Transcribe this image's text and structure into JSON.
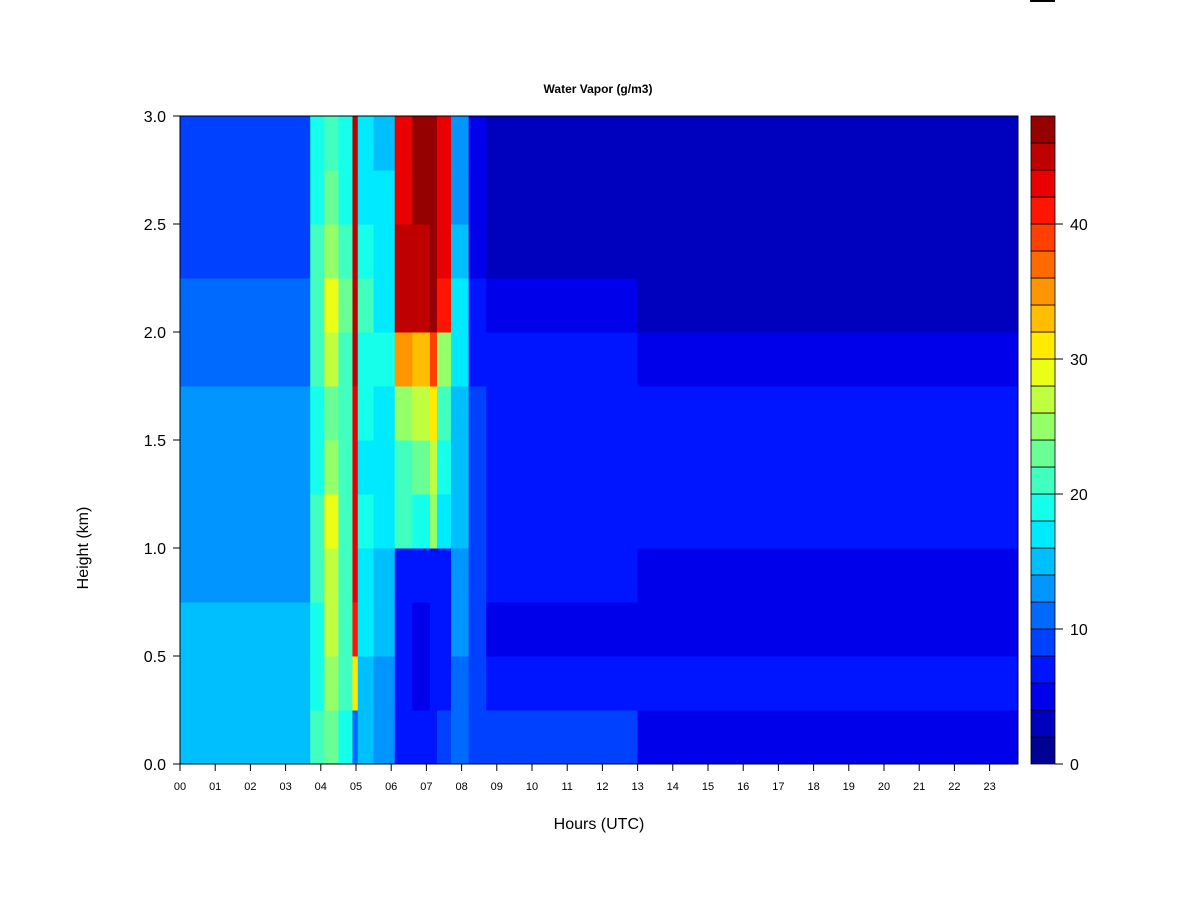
{
  "chart_data": {
    "type": "heatmap",
    "title": "Water Vapor (g/m3)",
    "xlabel": "Hours (UTC)",
    "ylabel": "Height (km)",
    "xlim": [
      0,
      23.8
    ],
    "ylim": [
      0,
      3.0
    ],
    "x_tick_labels": [
      "00",
      "01",
      "02",
      "03",
      "04",
      "05",
      "06",
      "07",
      "08",
      "09",
      "10",
      "11",
      "12",
      "13",
      "14",
      "15",
      "16",
      "17",
      "18",
      "19",
      "20",
      "21",
      "22",
      "23"
    ],
    "y_ticks": [
      0.0,
      0.5,
      1.0,
      1.5,
      2.0,
      2.5,
      3.0
    ],
    "y_tick_labels": [
      "0.0",
      "0.5",
      "1.0",
      "1.5",
      "2.0",
      "2.5",
      "3.0"
    ],
    "colorbar": {
      "levels_min": 0,
      "levels_max": 48,
      "level_step": 2,
      "ticks": [
        0,
        10,
        20,
        30,
        40
      ],
      "tick_labels": [
        "0",
        "10",
        "20",
        "30",
        "40"
      ],
      "colormap": "jet"
    },
    "height_bands_km": [
      0,
      0.25,
      0.5,
      0.75,
      1.0,
      1.25,
      1.5,
      1.75,
      2.0,
      2.25,
      2.5,
      2.75,
      3.0
    ],
    "columns": [
      {
        "from": 0,
        "to": 3.7,
        "values": [
          15,
          15,
          14,
          13,
          12,
          12,
          12,
          11,
          10,
          9,
          9,
          9
        ]
      },
      {
        "from": 3.7,
        "to": 4.1,
        "values": [
          20,
          19,
          19,
          20,
          20,
          19,
          19,
          20,
          21,
          20,
          19,
          18
        ]
      },
      {
        "from": 4.1,
        "to": 4.5,
        "values": [
          22,
          24,
          27,
          26,
          28,
          24,
          23,
          26,
          29,
          24,
          22,
          20
        ]
      },
      {
        "from": 4.5,
        "to": 4.9,
        "values": [
          19,
          20,
          20,
          20,
          21,
          20,
          20,
          21,
          23,
          20,
          19,
          18
        ]
      },
      {
        "from": 4.9,
        "to": 5.05,
        "values": [
          10,
          30,
          40,
          42,
          43,
          43,
          43,
          44,
          45,
          45,
          45,
          45
        ]
      },
      {
        "from": 5.05,
        "to": 5.5,
        "values": [
          14,
          15,
          16,
          16,
          18,
          17,
          18,
          19,
          20,
          18,
          17,
          16
        ]
      },
      {
        "from": 5.5,
        "to": 6.1,
        "values": [
          12,
          13,
          14,
          14,
          16,
          17,
          17,
          18,
          17,
          16,
          16,
          15
        ]
      },
      {
        "from": 6.1,
        "to": 6.6,
        "values": [
          7,
          6,
          6,
          6,
          20,
          21,
          24,
          34,
          44,
          44,
          43,
          42
        ]
      },
      {
        "from": 6.6,
        "to": 7.1,
        "values": [
          7,
          5,
          5,
          6,
          18,
          22,
          26,
          32,
          44,
          45,
          46,
          46
        ]
      },
      {
        "from": 7.1,
        "to": 7.3,
        "values": [
          7,
          6,
          6,
          6,
          24,
          26,
          30,
          38,
          46,
          46,
          46,
          46
        ]
      },
      {
        "from": 7.3,
        "to": 7.7,
        "values": [
          8,
          7,
          7,
          7,
          17,
          19,
          21,
          25,
          40,
          42,
          43,
          42
        ]
      },
      {
        "from": 7.7,
        "to": 8.2,
        "values": [
          10,
          11,
          12,
          12,
          14,
          15,
          15,
          16,
          16,
          14,
          13,
          12
        ]
      },
      {
        "from": 8.2,
        "to": 8.7,
        "values": [
          9,
          9,
          9,
          9,
          8,
          8,
          8,
          7,
          6,
          5,
          4,
          4
        ]
      },
      {
        "from": 8.7,
        "to": 13,
        "values": [
          8,
          6,
          5,
          7,
          7,
          7,
          6,
          6,
          4,
          2,
          2,
          2
        ]
      },
      {
        "from": 13,
        "to": 23.8,
        "values": [
          4,
          6,
          5,
          5,
          6,
          6,
          6,
          5,
          3,
          2,
          2,
          2
        ]
      }
    ]
  }
}
